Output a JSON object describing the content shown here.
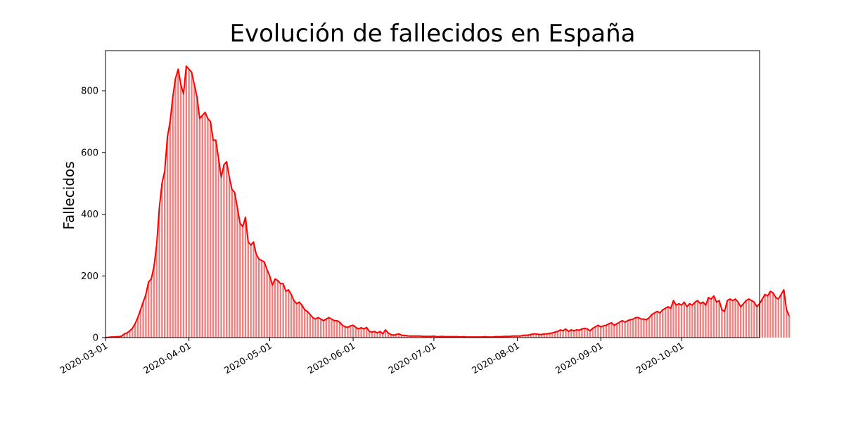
{
  "chart_data": {
    "type": "bar",
    "title": "Evolución de fallecidos en España",
    "xlabel": "",
    "ylabel": "Fallecidos",
    "x_start": "2020-03-01",
    "x_end": "2020-10-30",
    "ylim": [
      0,
      930
    ],
    "yticks": [
      0,
      200,
      400,
      600,
      800
    ],
    "xticks": [
      "2020-03-01",
      "2020-04-01",
      "2020-05-01",
      "2020-06-01",
      "2020-07-01",
      "2020-08-01",
      "2020-09-01",
      "2020-10-01"
    ],
    "grid": false,
    "legend": "none",
    "bar_color": "#f08080",
    "line_color": "#ff0000",
    "series": [
      {
        "values": [
          0,
          1,
          2,
          2,
          3,
          3,
          5,
          12,
          15,
          22,
          30,
          45,
          65,
          90,
          115,
          140,
          180,
          190,
          230,
          300,
          420,
          500,
          540,
          650,
          700,
          780,
          840,
          870,
          820,
          790,
          880,
          870,
          860,
          820,
          780,
          710,
          720,
          730,
          710,
          700,
          640,
          640,
          580,
          520,
          560,
          570,
          520,
          480,
          470,
          420,
          370,
          360,
          390,
          310,
          300,
          310,
          270,
          255,
          250,
          245,
          220,
          200,
          170,
          190,
          185,
          175,
          175,
          150,
          155,
          140,
          120,
          110,
          115,
          105,
          90,
          85,
          75,
          65,
          60,
          65,
          60,
          55,
          60,
          65,
          60,
          55,
          55,
          50,
          40,
          35,
          33,
          38,
          40,
          33,
          28,
          32,
          28,
          33,
          20,
          18,
          20,
          15,
          20,
          12,
          25,
          15,
          10,
          8,
          10,
          12,
          8,
          7,
          6,
          5,
          5,
          5,
          5,
          5,
          4,
          4,
          4,
          4,
          5,
          3,
          3,
          4,
          3,
          3,
          3,
          3,
          3,
          3,
          2,
          3,
          2,
          2,
          2,
          2,
          2,
          2,
          2,
          3,
          2,
          2,
          2,
          3,
          3,
          3,
          4,
          4,
          4,
          5,
          5,
          5,
          5,
          7,
          8,
          8,
          10,
          12,
          12,
          10,
          10,
          12,
          12,
          14,
          15,
          18,
          20,
          25,
          22,
          28,
          20,
          25,
          22,
          25,
          24,
          28,
          30,
          28,
          22,
          30,
          35,
          40,
          35,
          38,
          40,
          45,
          48,
          40,
          45,
          50,
          55,
          50,
          55,
          58,
          60,
          65,
          65,
          60,
          60,
          58,
          65,
          75,
          80,
          85,
          80,
          90,
          95,
          100,
          95,
          120,
          105,
          110,
          105,
          115,
          100,
          110,
          105,
          115,
          120,
          110,
          115,
          105,
          130,
          125,
          135,
          115,
          120,
          90,
          85,
          120,
          125,
          120,
          125,
          115,
          100,
          110,
          120,
          125,
          120,
          115,
          100,
          110,
          125,
          140,
          135,
          150,
          145,
          130,
          125,
          140,
          155,
          90,
          70
        ]
      }
    ]
  }
}
